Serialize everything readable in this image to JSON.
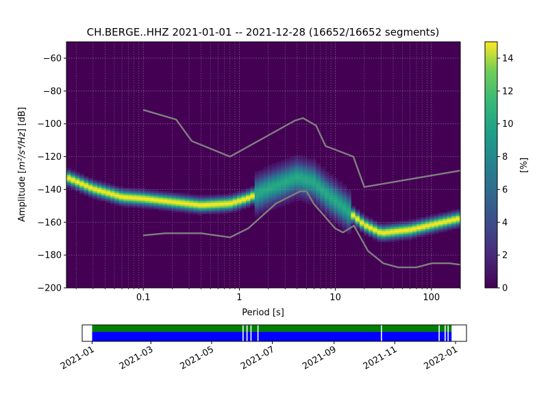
{
  "chart_data": [
    {
      "type": "heatmap",
      "title": "CH.BERGE..HHZ   2021-01-01 -- 2021-12-28  (16652/16652 segments)",
      "xlabel": "Period [s]",
      "ylabel_prefix": "Amplitude [",
      "ylabel_math": "m²/s⁴/Hz",
      "ylabel_suffix": "] [dB]",
      "xscale": "log",
      "xlim": [
        0.01585,
        200
      ],
      "ylim": [
        -200,
        -50
      ],
      "x_ticks": [
        {
          "value": 0.1,
          "label": "0.1"
        },
        {
          "value": 1,
          "label": "1"
        },
        {
          "value": 10,
          "label": "10"
        },
        {
          "value": 100,
          "label": "100"
        }
      ],
      "y_ticks": [
        {
          "value": -60,
          "label": "−60"
        },
        {
          "value": -80,
          "label": "−80"
        },
        {
          "value": -100,
          "label": "−100"
        },
        {
          "value": -120,
          "label": "−120"
        },
        {
          "value": -140,
          "label": "−140"
        },
        {
          "value": -160,
          "label": "−160"
        },
        {
          "value": -180,
          "label": "−180"
        },
        {
          "value": -200,
          "label": "−200"
        }
      ],
      "grid": true,
      "colormap": "viridis",
      "colorbar": {
        "label": "[%]",
        "range": [
          0,
          15
        ],
        "ticks": [
          0,
          2,
          4,
          6,
          8,
          10,
          12,
          14
        ]
      },
      "density_ridges": [
        {
          "period": [
            0.0159,
            0.03,
            0.06,
            0.1,
            0.2,
            0.4,
            0.8,
            1.2,
            2,
            4,
            6,
            8,
            12,
            20,
            30,
            60,
            100,
            200
          ],
          "db": [
            -133,
            -140,
            -145,
            -146,
            -148,
            -150,
            -149,
            -146,
            -140,
            -133,
            -136,
            -143,
            -151,
            -162,
            -167,
            -165,
            -162,
            -158
          ]
        }
      ],
      "noise_models": [
        {
          "name": "high",
          "color": "#808080",
          "period": [
            0.1,
            0.22,
            0.32,
            0.8,
            3.8,
            4.6,
            6.3,
            7.9,
            15.4,
            20,
            354.8
          ],
          "db": [
            -91.5,
            -97.4,
            -110.5,
            -120,
            -98,
            -96.5,
            -101,
            -113.5,
            -120,
            -138.5,
            -126
          ]
        },
        {
          "name": "low",
          "color": "#808080",
          "period": [
            0.1,
            0.17,
            0.4,
            0.8,
            1.24,
            2.4,
            4.3,
            5,
            6,
            10,
            12,
            15.6,
            21.9,
            31.6,
            45,
            70,
            101,
            154,
            328
          ],
          "db": [
            -168,
            -166.7,
            -166.7,
            -169.2,
            -163.7,
            -148.6,
            -141.1,
            -141.1,
            -149,
            -163.8,
            -166.2,
            -162.1,
            -177.5,
            -185,
            -187.5,
            -187.5,
            -185,
            -185,
            -187.5
          ]
        }
      ]
    },
    {
      "type": "timeline",
      "x_ticks": [
        "2021-01",
        "2021-03",
        "2021-05",
        "2021-07",
        "2021-09",
        "2021-11",
        "2022-01"
      ],
      "range": [
        "2020-12-22",
        "2022-01-12"
      ],
      "data_start": "2021-01-01",
      "data_end": "2021-12-28",
      "bands": [
        {
          "name": "used",
          "color": "#008000"
        },
        {
          "name": "available",
          "color": "#0000ff"
        }
      ],
      "gaps": [
        "2021-06-01",
        "2021-06-05",
        "2021-06-09",
        "2021-06-16",
        "2021-10-18",
        "2021-12-15",
        "2021-12-21",
        "2021-12-24"
      ]
    }
  ]
}
